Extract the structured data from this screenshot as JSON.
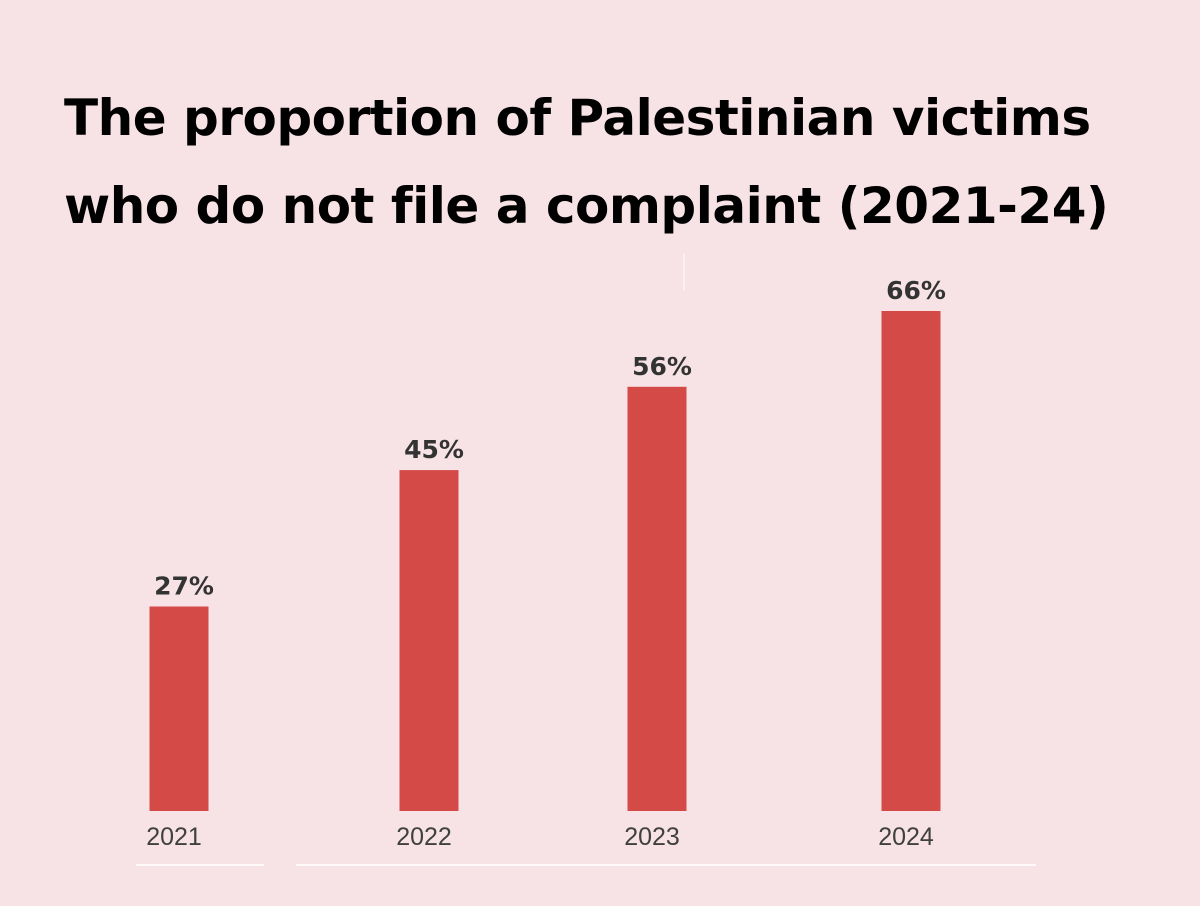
{
  "chart_data": {
    "type": "bar",
    "title": "The proportion of Palestinian victims who do not file a complaint (2021-24)",
    "categories": [
      "2021",
      "2022",
      "2023",
      "2024"
    ],
    "values": [
      27,
      45,
      56,
      66
    ],
    "value_labels": [
      "27%",
      "45%",
      "56%",
      "66%"
    ],
    "unit": "%",
    "ylim": [
      0,
      66
    ],
    "grid": false,
    "legend": "none",
    "bar_color": "#d34a46",
    "background_color": "#f7e3e6"
  }
}
